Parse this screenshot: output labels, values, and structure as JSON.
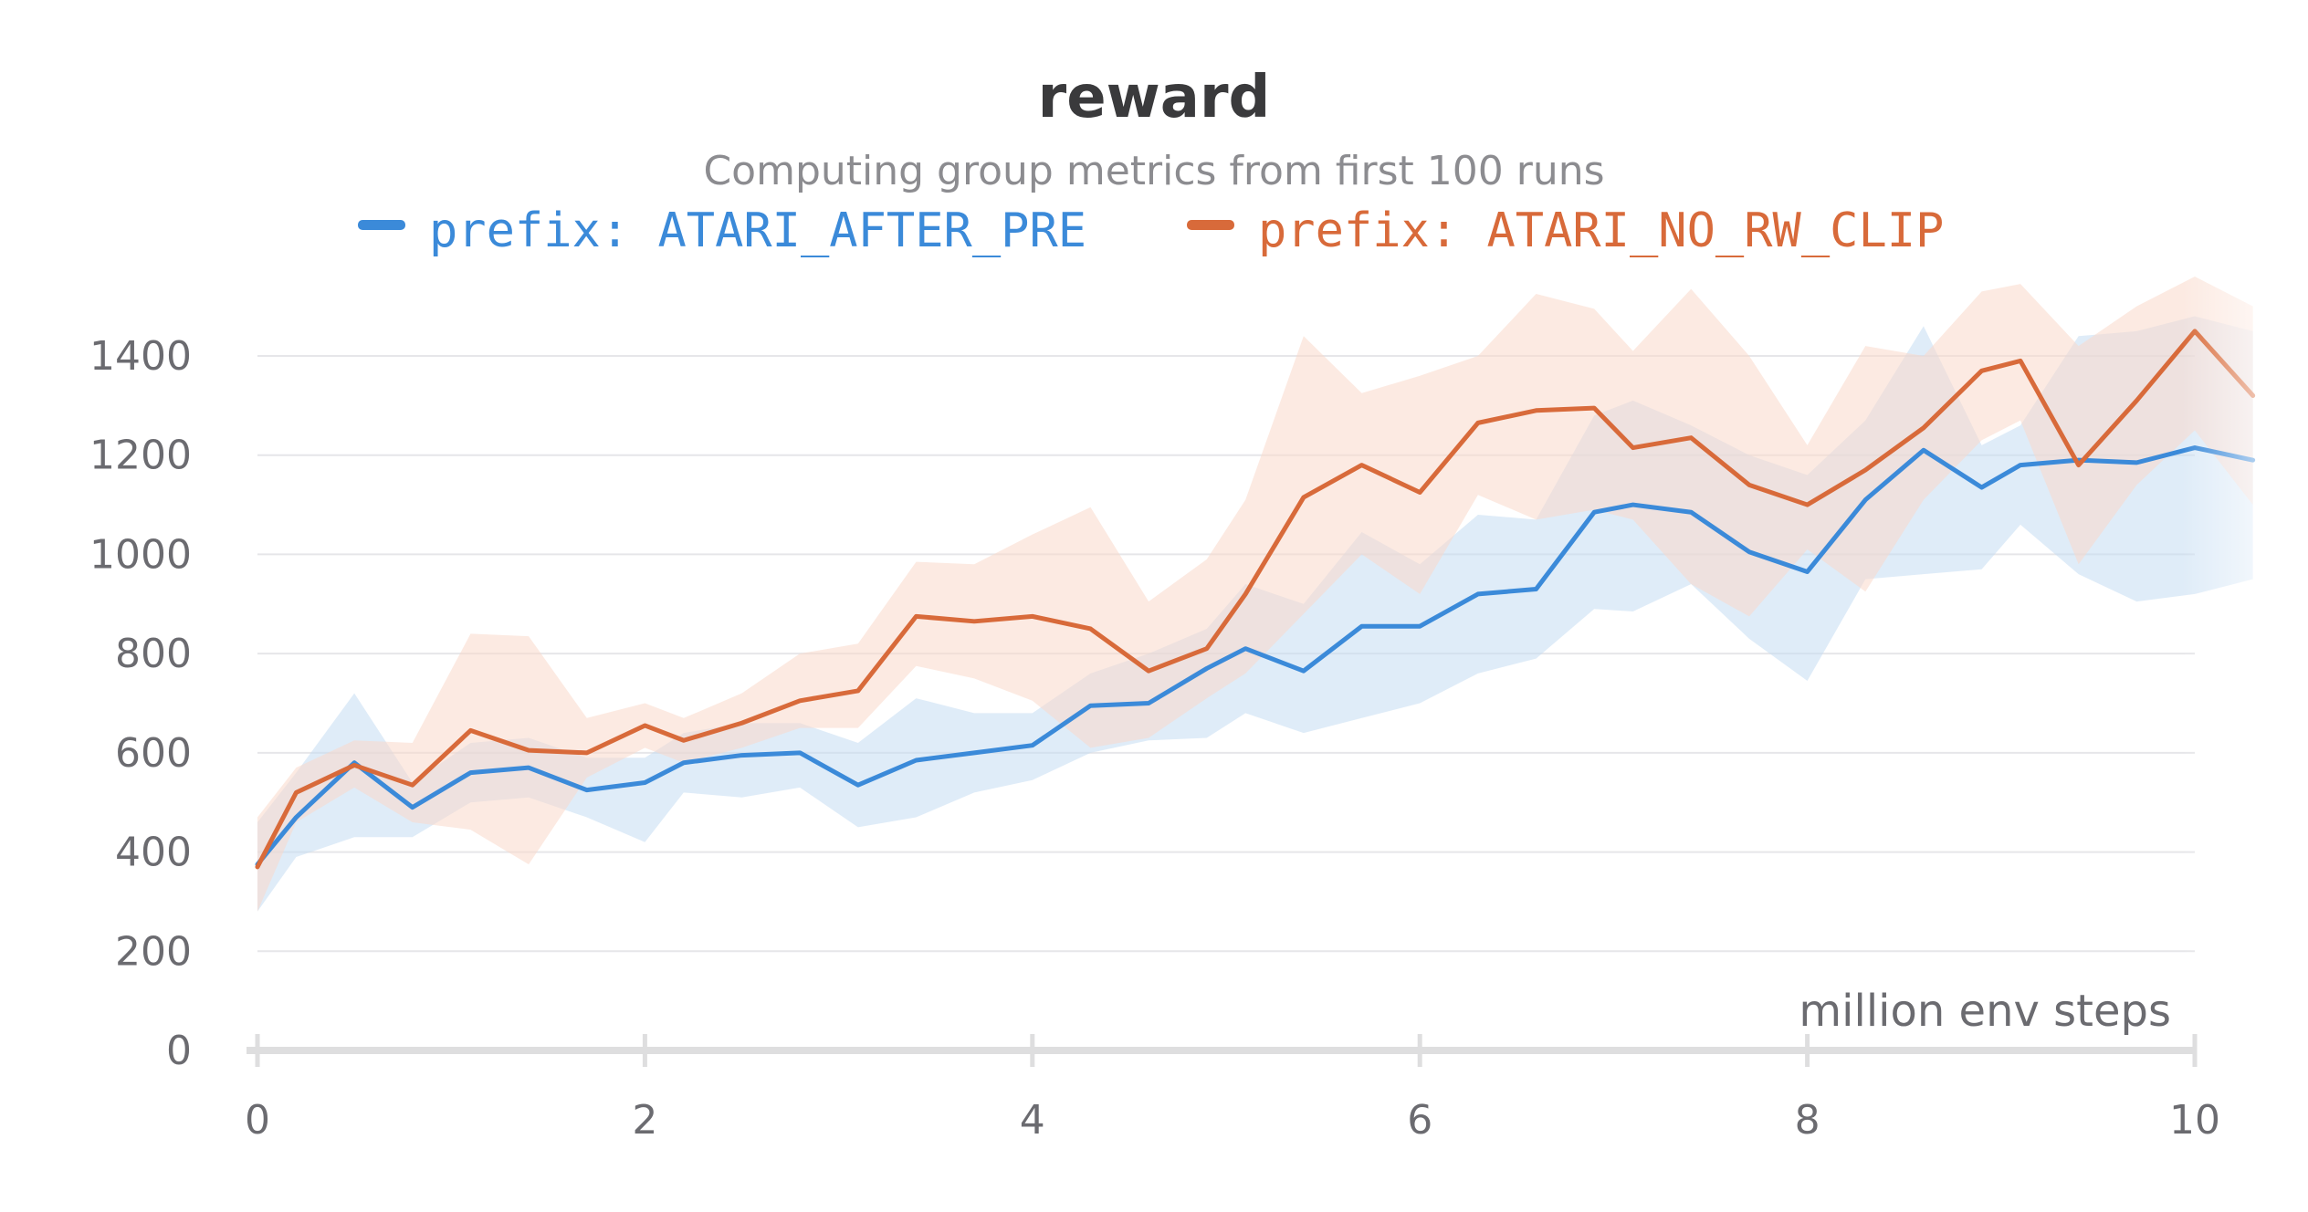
{
  "chart_data": {
    "type": "line",
    "title": "reward",
    "subtitle": "Computing group metrics from first 100 runs",
    "xlabel": "million env steps",
    "ylabel": "",
    "xlim": [
      0,
      10
    ],
    "ylim": [
      0,
      1550
    ],
    "x_ticks": [
      0,
      2,
      4,
      6,
      8,
      10
    ],
    "y_ticks": [
      0,
      200,
      400,
      600,
      800,
      1000,
      1200,
      1400
    ],
    "grid": true,
    "legend_position": "top-center",
    "x": [
      0,
      0.2,
      0.5,
      0.8,
      1.1,
      1.4,
      1.7,
      2.0,
      2.2,
      2.5,
      2.8,
      3.1,
      3.4,
      3.7,
      4.0,
      4.3,
      4.6,
      4.9,
      5.1,
      5.4,
      5.7,
      6.0,
      6.3,
      6.6,
      6.9,
      7.1,
      7.4,
      7.7,
      8.0,
      8.3,
      8.6,
      8.9,
      9.1,
      9.4,
      9.7,
      10.0,
      10.3
    ],
    "series": [
      {
        "name": "prefix: ATARI_AFTER_PRE",
        "color": "#3b8ad9",
        "band_color": "#c4dcf3",
        "values": [
          375,
          470,
          580,
          490,
          560,
          570,
          525,
          540,
          580,
          595,
          600,
          535,
          585,
          600,
          615,
          695,
          700,
          770,
          810,
          765,
          855,
          855,
          920,
          930,
          1085,
          1100,
          1085,
          1005,
          965,
          1110,
          1210,
          1135,
          1180,
          1190,
          1185,
          1215,
          1190
        ],
        "upper": [
          460,
          560,
          720,
          540,
          620,
          630,
          590,
          590,
          640,
          660,
          660,
          620,
          710,
          680,
          680,
          760,
          800,
          850,
          940,
          900,
          1045,
          980,
          1080,
          1070,
          1280,
          1310,
          1260,
          1200,
          1160,
          1270,
          1460,
          1220,
          1260,
          1440,
          1450,
          1480,
          1450
        ],
        "lower": [
          280,
          390,
          430,
          430,
          500,
          510,
          470,
          420,
          520,
          510,
          530,
          450,
          470,
          520,
          545,
          600,
          625,
          630,
          680,
          640,
          670,
          700,
          760,
          790,
          890,
          885,
          940,
          830,
          745,
          950,
          960,
          970,
          1060,
          960,
          905,
          920,
          950
        ]
      },
      {
        "name": "prefix: ATARI_NO_RW_CLIP",
        "color": "#d86a3a",
        "band_color": "#f9d9cb",
        "values": [
          370,
          520,
          575,
          535,
          645,
          605,
          600,
          655,
          625,
          660,
          705,
          725,
          875,
          865,
          875,
          850,
          765,
          810,
          920,
          1115,
          1180,
          1125,
          1265,
          1290,
          1295,
          1215,
          1235,
          1140,
          1100,
          1170,
          1255,
          1370,
          1390,
          1180,
          1310,
          1450,
          1320
        ],
        "upper": [
          470,
          570,
          625,
          620,
          840,
          835,
          670,
          700,
          670,
          720,
          800,
          820,
          985,
          980,
          1040,
          1095,
          905,
          990,
          1110,
          1440,
          1325,
          1360,
          1400,
          1525,
          1495,
          1410,
          1535,
          1400,
          1220,
          1420,
          1400,
          1530,
          1545,
          1420,
          1500,
          1560,
          1500
        ],
        "lower": [
          280,
          460,
          530,
          460,
          445,
          375,
          550,
          610,
          580,
          610,
          650,
          650,
          775,
          750,
          705,
          610,
          630,
          710,
          760,
          880,
          1000,
          920,
          1120,
          1070,
          1090,
          1070,
          940,
          875,
          1010,
          925,
          1110,
          1230,
          1270,
          980,
          1140,
          1250,
          1100
        ]
      }
    ]
  }
}
